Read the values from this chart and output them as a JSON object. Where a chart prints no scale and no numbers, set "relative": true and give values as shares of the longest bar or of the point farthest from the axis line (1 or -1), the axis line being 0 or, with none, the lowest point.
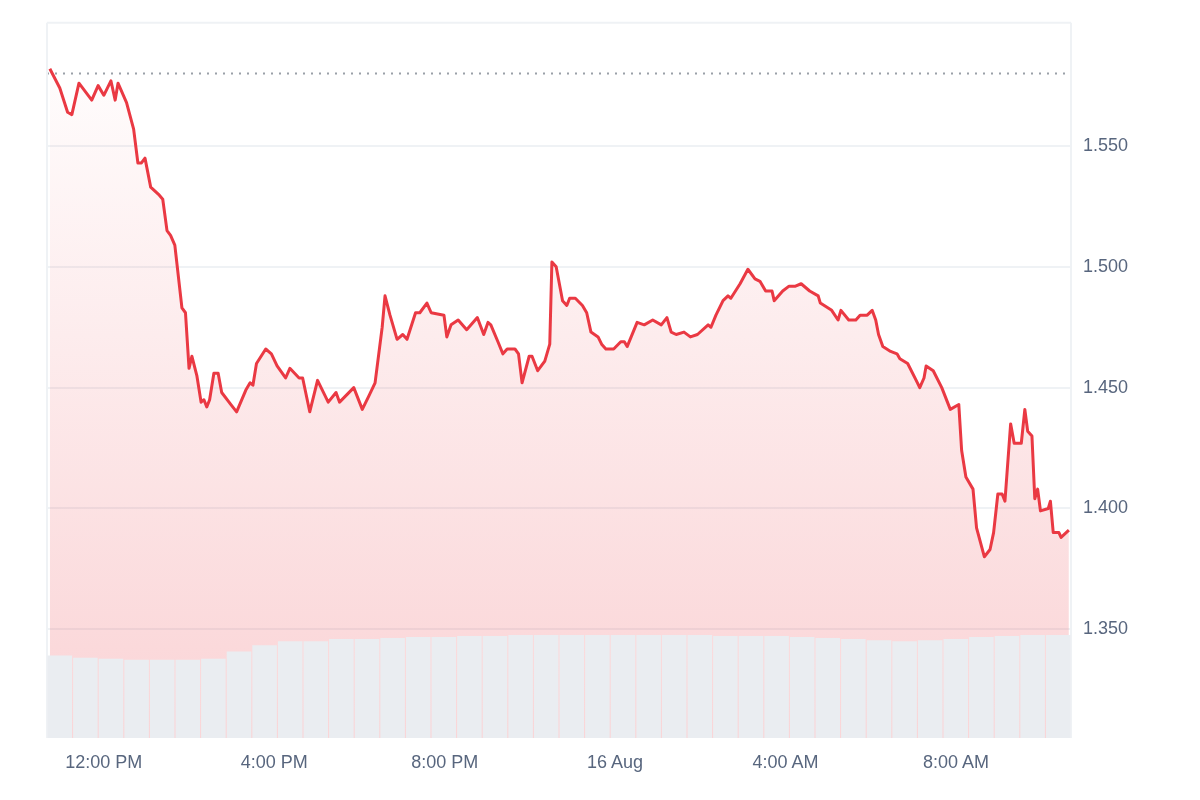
{
  "chart_data": [
    {
      "type": "area",
      "color": "#ea3943",
      "marker": "none",
      "line_style": "solid",
      "grid": "y",
      "x": [
        "--08-15T10:44",
        "--08-15T10:58",
        "--08-15T11:09",
        "--08-15T11:15",
        "--08-15T11:25",
        "--08-15T11:43",
        "--08-15T11:52",
        "--08-15T12:00",
        "--08-15T12:10",
        "--08-15T12:16",
        "--08-15T12:20",
        "--08-15T12:32",
        "--08-15T12:42",
        "--08-15T12:48",
        "--08-15T12:53",
        "--08-15T12:58",
        "--08-15T13:06",
        "--08-15T13:17",
        "--08-15T13:23",
        "--08-15T13:29",
        "--08-15T13:34",
        "--08-15T13:40",
        "--08-15T13:50",
        "--08-15T13:55",
        "--08-15T14:00",
        "--08-15T14:04",
        "--08-15T14:11",
        "--08-15T14:17",
        "--08-15T14:21",
        "--08-15T14:25",
        "--08-15T14:29",
        "--08-15T14:35",
        "--08-15T14:41",
        "--08-15T14:46",
        "--08-15T14:59",
        "--08-15T15:07",
        "--08-15T15:20",
        "--08-15T15:26",
        "--08-15T15:30",
        "--08-15T15:35",
        "--08-15T15:48",
        "--08-15T15:56",
        "--08-15T16:04",
        "--08-15T16:16",
        "--08-15T16:22",
        "--08-15T16:35",
        "--08-15T16:40",
        "--08-15T16:50",
        "--08-15T17:01",
        "--08-15T17:16",
        "--08-15T17:27",
        "--08-15T17:32",
        "--08-15T17:52",
        "--08-15T18:04",
        "--08-15T18:14",
        "--08-15T18:22",
        "--08-15T18:32",
        "--08-15T18:36",
        "--08-15T18:43",
        "--08-15T18:53",
        "--08-15T19:01",
        "--08-15T19:07",
        "--08-15T19:19",
        "--08-15T19:25",
        "--08-15T19:35",
        "--08-15T19:41",
        "--08-15T19:59",
        "--08-15T20:03",
        "--08-15T20:09",
        "--08-15T20:19",
        "--08-15T20:31",
        "--08-15T20:46",
        "--08-15T20:55",
        "--08-15T21:01",
        "--08-15T21:05",
        "--08-15T21:15",
        "--08-15T21:22",
        "--08-15T21:28",
        "--08-15T21:39",
        "--08-15T21:44",
        "--08-15T21:49",
        "--08-15T21:59",
        "--08-15T22:03",
        "--08-15T22:11",
        "--08-15T22:21",
        "--08-15T22:28",
        "--08-15T22:31",
        "--08-15T22:37",
        "--08-15T22:46",
        "--08-15T22:52",
        "--08-15T22:56",
        "--08-15T23:04",
        "--08-15T23:14",
        "--08-15T23:20",
        "--08-15T23:26",
        "--08-15T23:36",
        "--08-15T23:41",
        "--08-15T23:47",
        "--08-15T23:58",
        "--08-16T00:08",
        "--08-16T00:13",
        "--08-16T00:17",
        "--08-16T00:31",
        "--08-16T00:41",
        "--08-16T00:53",
        "--08-16T01:05",
        "--08-16T01:13",
        "--08-16T01:19",
        "--08-16T01:26",
        "--08-16T01:37",
        "--08-16T01:46",
        "--08-16T01:56",
        "--08-16T02:11",
        "--08-16T02:15",
        "--08-16T02:22",
        "--08-16T02:32",
        "--08-16T02:39",
        "--08-16T02:43",
        "--08-16T02:56",
        "--08-16T03:07",
        "--08-16T03:17",
        "--08-16T03:24",
        "--08-16T03:32",
        "--08-16T03:41",
        "--08-16T03:44",
        "--08-16T03:56",
        "--08-16T04:05",
        "--08-16T04:14",
        "--08-16T04:22",
        "--08-16T04:34",
        "--08-16T04:46",
        "--08-16T04:49",
        "--08-16T05:05",
        "--08-16T05:14",
        "--08-16T05:18",
        "--08-16T05:29",
        "--08-16T05:39",
        "--08-16T05:45",
        "--08-16T05:55",
        "--08-16T06:02",
        "--08-16T06:07",
        "--08-16T06:11",
        "--08-16T06:17",
        "--08-16T06:28",
        "--08-16T06:37",
        "--08-16T06:41",
        "--08-16T06:52",
        "--08-16T07:04",
        "--08-16T07:09",
        "--08-16T07:15",
        "--08-16T07:18",
        "--08-16T07:28",
        "--08-16T07:40",
        "--08-16T07:52",
        "--08-16T08:04",
        "--08-16T08:08",
        "--08-16T08:14",
        "--08-16T08:24",
        "--08-16T08:29",
        "--08-16T08:40",
        "--08-16T08:48",
        "--08-16T08:53",
        "--08-16T08:59",
        "--08-16T09:05",
        "--08-16T09:09",
        "--08-16T09:17",
        "--08-16T09:22",
        "--08-16T09:32",
        "--08-16T09:37",
        "--08-16T09:41",
        "--08-16T09:47",
        "--08-16T09:51",
        "--08-16T09:55",
        "--08-16T09:59",
        "--08-16T10:10",
        "--08-16T10:13",
        "--08-16T10:17",
        "--08-16T10:25",
        "--08-16T10:28",
        "--08-16T10:39"
      ],
      "values": [
        1.582,
        1.574,
        1.564,
        1.563,
        1.576,
        1.569,
        1.575,
        1.571,
        1.577,
        1.569,
        1.576,
        1.568,
        1.557,
        1.543,
        1.543,
        1.545,
        1.533,
        1.53,
        1.528,
        1.515,
        1.513,
        1.509,
        1.483,
        1.481,
        1.458,
        1.463,
        1.455,
        1.444,
        1.445,
        1.442,
        1.445,
        1.456,
        1.456,
        1.448,
        1.443,
        1.44,
        1.449,
        1.452,
        1.451,
        1.46,
        1.466,
        1.464,
        1.459,
        1.454,
        1.458,
        1.454,
        1.454,
        1.44,
        1.453,
        1.444,
        1.448,
        1.444,
        1.45,
        1.441,
        1.447,
        1.452,
        1.475,
        1.488,
        1.48,
        1.47,
        1.472,
        1.47,
        1.481,
        1.481,
        1.485,
        1.481,
        1.48,
        1.471,
        1.476,
        1.478,
        1.474,
        1.479,
        1.472,
        1.477,
        1.476,
        1.469,
        1.464,
        1.466,
        1.466,
        1.464,
        1.452,
        1.463,
        1.463,
        1.457,
        1.461,
        1.468,
        1.502,
        1.5,
        1.486,
        1.484,
        1.487,
        1.487,
        1.484,
        1.481,
        1.473,
        1.471,
        1.468,
        1.466,
        1.466,
        1.469,
        1.469,
        1.467,
        1.477,
        1.476,
        1.478,
        1.476,
        1.479,
        1.473,
        1.472,
        1.473,
        1.471,
        1.472,
        1.476,
        1.475,
        1.48,
        1.486,
        1.488,
        1.487,
        1.493,
        1.499,
        1.495,
        1.494,
        1.49,
        1.49,
        1.486,
        1.49,
        1.492,
        1.492,
        1.493,
        1.49,
        1.488,
        1.485,
        1.482,
        1.478,
        1.482,
        1.478,
        1.478,
        1.48,
        1.48,
        1.482,
        1.478,
        1.472,
        1.467,
        1.465,
        1.464,
        1.462,
        1.46,
        1.453,
        1.45,
        1.454,
        1.459,
        1.457,
        1.45,
        1.441,
        1.443,
        1.424,
        1.413,
        1.408,
        1.392,
        1.38,
        1.383,
        1.39,
        1.406,
        1.406,
        1.403,
        1.435,
        1.427,
        1.427,
        1.441,
        1.432,
        1.43,
        1.404,
        1.408,
        1.399,
        1.4,
        1.403,
        1.39,
        1.39,
        1.388,
        1.391
      ],
      "xlim": [
        "--08-15T10:40",
        "--08-16T10:42"
      ],
      "xticks": [
        {
          "value": "--08-15T12:00",
          "label": "12:00 PM"
        },
        {
          "value": "--08-15T16:00",
          "label": "4:00 PM"
        },
        {
          "value": "--08-15T20:00",
          "label": "8:00 PM"
        },
        {
          "value": "--08-16T00:00",
          "label": "16 Aug"
        },
        {
          "value": "--08-16T04:00",
          "label": "4:00 AM"
        },
        {
          "value": "--08-16T08:00",
          "label": "8:00 AM"
        }
      ],
      "ylim": [
        1.305,
        1.601
      ],
      "yticks": [
        {
          "value": 1.35,
          "label": "1.350"
        },
        {
          "value": 1.4,
          "label": "1.400"
        },
        {
          "value": 1.45,
          "label": "1.450"
        },
        {
          "value": 1.5,
          "label": "1.500"
        },
        {
          "value": 1.55,
          "label": "1.550"
        }
      ],
      "ref_lines": [
        {
          "axis": "y",
          "value": 1.58,
          "line_style": "dotted",
          "color": "#9aa0a8"
        }
      ]
    },
    {
      "type": "bar",
      "relative": true,
      "color": "#eaedf1",
      "categories": [
        null,
        null,
        null,
        null,
        null,
        null,
        null,
        null,
        null,
        null,
        null,
        null,
        null,
        null,
        null,
        null,
        null,
        null,
        null,
        null,
        null,
        null,
        null,
        null,
        null,
        null,
        null,
        null,
        null,
        null,
        null,
        null,
        null,
        null,
        null,
        null,
        null,
        null,
        null,
        null
      ],
      "values": [
        0.8,
        0.78,
        0.77,
        0.76,
        0.76,
        0.76,
        0.77,
        0.84,
        0.9,
        0.94,
        0.94,
        0.96,
        0.96,
        0.97,
        0.98,
        0.98,
        0.99,
        0.99,
        1,
        1,
        1,
        1,
        1,
        1,
        1,
        1,
        0.99,
        0.99,
        0.99,
        0.98,
        0.97,
        0.96,
        0.95,
        0.94,
        0.95,
        0.96,
        0.98,
        0.99,
        1,
        1
      ]
    }
  ]
}
